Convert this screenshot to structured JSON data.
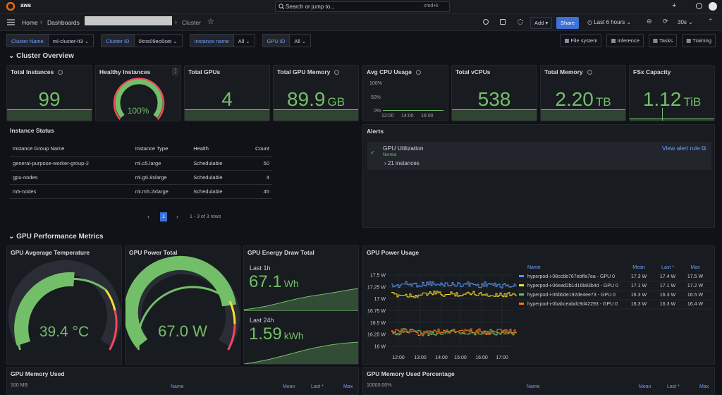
{
  "topbar": {
    "logo": "aws",
    "search": "Search or jump to...",
    "shortcut": "cmd+k"
  },
  "nav": {
    "breadcrumbs": [
      "Home",
      "Dashboards",
      "Cluster"
    ],
    "add": "Add",
    "share": "Share",
    "time_range": "Last 6 hours",
    "refresh": "30s"
  },
  "variables": [
    {
      "label": "Cluster Name",
      "value": "ml-cluster-lt3"
    },
    {
      "label": "Cluster ID",
      "value": "0kns09eo5set"
    },
    {
      "label": "Instance name",
      "value": "All"
    },
    {
      "label": "GPU ID",
      "value": "All"
    }
  ],
  "links": [
    "File system",
    "Inference",
    "Tasks",
    "Training"
  ],
  "sections": [
    "Cluster Overview",
    "GPU Performance Metrics"
  ],
  "stats": [
    {
      "title": "Total Instances",
      "value": "99"
    },
    {
      "title": "Healthy Instances",
      "value": "100%"
    },
    {
      "title": "Total GPUs",
      "value": "4"
    },
    {
      "title": "Total GPU Memory",
      "value": "89.9",
      "unit": "GB"
    },
    {
      "title": "Avg CPU Usage",
      "yticks": [
        "100%",
        "50%",
        "0%"
      ],
      "xticks": [
        "12:00",
        "14:00",
        "16:00"
      ]
    },
    {
      "title": "Total vCPUs",
      "value": "538"
    },
    {
      "title": "Total Memory",
      "value": "2.20",
      "unit": "TB"
    },
    {
      "title": "FSx Capacity",
      "value": "1.12",
      "unit": "TiB"
    }
  ],
  "instance_status": {
    "title": "Instance Status",
    "columns": [
      "Instance Group Name",
      "Instance Type",
      "Health",
      "Count"
    ],
    "rows": [
      [
        "general-purpose-worker-group-2",
        "ml.c5.large",
        "Schedulable",
        50
      ],
      [
        "gpu-nodes",
        "ml.g6.8xlarge",
        "Schedulable",
        4
      ],
      [
        "m5-nodes",
        "ml.m5.2xlarge",
        "Schedulable",
        45
      ]
    ],
    "page": 1,
    "summary": "1 - 3 of 3 rows"
  },
  "alerts": {
    "title": "Alerts",
    "rule": "GPU Utilization",
    "state": "Normal",
    "instances": "21 instances",
    "link": "View alert rule"
  },
  "gpu_temperature": {
    "title": "GPU Avgerage Temperature",
    "value": "39.4 °C"
  },
  "gpu_power_total": {
    "title": "GPU Power Total",
    "value": "67.0 W"
  },
  "gpu_energy": {
    "title": "GPU Energy Draw Total",
    "items": [
      {
        "label": "Last 1h",
        "value": "67.1",
        "unit": "Wh"
      },
      {
        "label": "Last 24h",
        "value": "1.59",
        "unit": "kWh"
      }
    ]
  },
  "gpu_power_usage": {
    "title": "GPU Power Usage",
    "yticks": [
      {
        "value": 17.5,
        "label": "17.5 W"
      },
      {
        "value": 17.25,
        "label": "17.25 W"
      },
      {
        "value": 17,
        "label": "17 W"
      },
      {
        "value": 16.75,
        "label": "16.75 W"
      },
      {
        "value": 16.5,
        "label": "16.5 W"
      },
      {
        "value": 16.25,
        "label": "16.25 W"
      },
      {
        "value": 16,
        "label": "16 W"
      }
    ],
    "xticks": [
      "12:00",
      "13:00",
      "14:00",
      "15:00",
      "16:00",
      "17:00"
    ],
    "legend_columns": [
      "Name",
      "Mean",
      "Last *",
      "Max"
    ],
    "series": [
      {
        "name": "hyperpod-i-08ccbb767ebffa7ea - GPU 0",
        "color": "#5794f2",
        "mean": {
          "value": 17.3,
          "label": "17.3 W"
        },
        "last": {
          "value": 17.4,
          "label": "17.4 W"
        },
        "max": {
          "value": 17.5,
          "label": "17.5 W"
        }
      },
      {
        "name": "hyperpod-i-06ead2b1d16b83b4d - GPU 0",
        "color": "#fade2a",
        "mean": {
          "value": 17.1,
          "label": "17.1 W"
        },
        "last": {
          "value": 17.1,
          "label": "17.1 W"
        },
        "max": {
          "value": 17.2,
          "label": "17.2 W"
        }
      },
      {
        "name": "hyperpod-i-06bbde192de4ee73 - GPU 0",
        "color": "#73bf69",
        "mean": {
          "value": 16.3,
          "label": "16.3 W"
        },
        "last": {
          "value": 16.3,
          "label": "16.3 W"
        },
        "max": {
          "value": 16.5,
          "label": "16.5 W"
        }
      },
      {
        "name": "hyperpod-i-0babceabdc9d42293 - GPU 0",
        "color": "#ff780a",
        "mean": {
          "value": 16.3,
          "label": "16.3 W"
        },
        "last": {
          "value": 16.3,
          "label": "16.3 W"
        },
        "max": {
          "value": 16.4,
          "label": "16.4 W"
        }
      }
    ]
  },
  "gpu_memory_used": {
    "title": "GPU Memory Used",
    "ytick": "100 MB",
    "legend_columns": [
      "Name",
      "Mean",
      "Last *",
      "Max"
    ]
  },
  "gpu_memory_used_percentage": {
    "title": "GPU Memory Used Percentage",
    "ytick": "10000.00%",
    "legend_columns": [
      "Name",
      "Mean",
      "Last *",
      "Max"
    ]
  }
}
